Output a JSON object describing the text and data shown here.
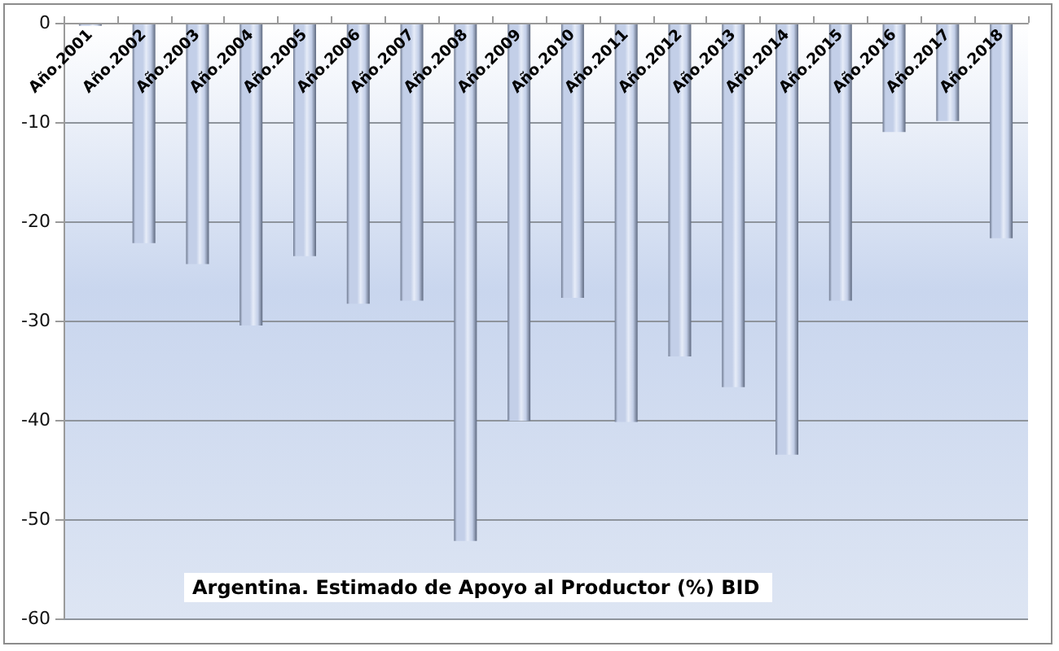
{
  "chart_data": {
    "type": "bar",
    "title": "Argentina. Estimado de Apoyo al Productor (%) BID",
    "categories": [
      "Año.2001",
      "Año.2002",
      "Año.2003",
      "Año.2004",
      "Año.2005",
      "Año.2006",
      "Año.2007",
      "Año.2008",
      "Año.2009",
      "Año.2010",
      "Año.2011",
      "Año.2012",
      "Año.2013",
      "Año.2014",
      "Año.2015",
      "Año.2016",
      "Año.2017",
      "Año.2018"
    ],
    "values": [
      -0.3,
      -22.2,
      -24.3,
      -30.5,
      -23.5,
      -28.3,
      -28.0,
      -52.2,
      -40.1,
      -27.7,
      -40.2,
      -33.6,
      -36.7,
      -43.5,
      -28.0,
      -11.0,
      -9.9,
      -21.7
    ],
    "color": "#c3cfe8",
    "ylim": [
      -60,
      0
    ],
    "yticks": [
      -60,
      -50,
      -40,
      -30,
      -20,
      -10,
      0
    ],
    "grid": "y"
  }
}
